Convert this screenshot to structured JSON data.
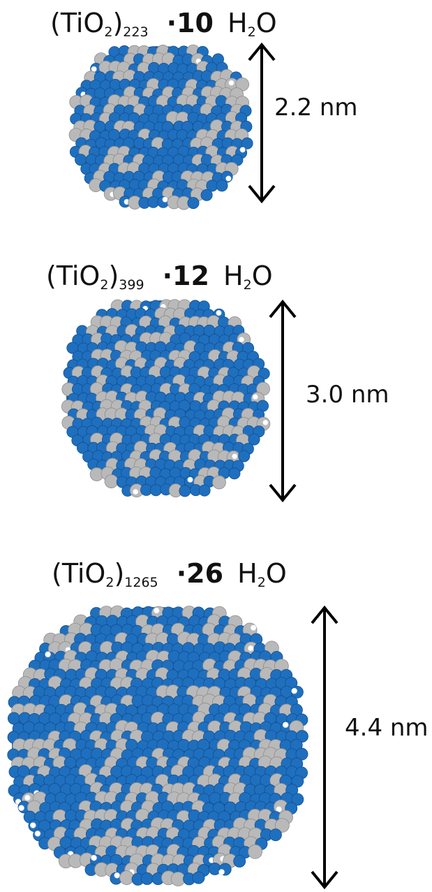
{
  "panels": [
    {
      "formula_prefix": "(TiO",
      "formula_sub1": "2",
      "formula_mid": ")",
      "formula_sub2": "223",
      "water_count": "·10",
      "water_h": "H",
      "water_sub": "2",
      "water_o": "O",
      "size_label": "2.2 nm"
    },
    {
      "formula_prefix": "(TiO",
      "formula_sub1": "2",
      "formula_mid": ")",
      "formula_sub2": "399",
      "water_count": "·12",
      "water_h": "H",
      "water_sub": "2",
      "water_o": "O",
      "size_label": "3.0 nm"
    },
    {
      "formula_prefix": "(TiO",
      "formula_sub1": "2",
      "formula_mid": ")",
      "formula_sub2": "1265",
      "water_count": "·26",
      "water_h": "H",
      "water_sub": "2",
      "water_o": "O",
      "size_label": "4.4 nm"
    }
  ],
  "colors": {
    "oxygen": "#1f6fbf",
    "titanium": "#b9b9b9",
    "hydrogen": "#ffffff",
    "arrow": "#000000"
  }
}
